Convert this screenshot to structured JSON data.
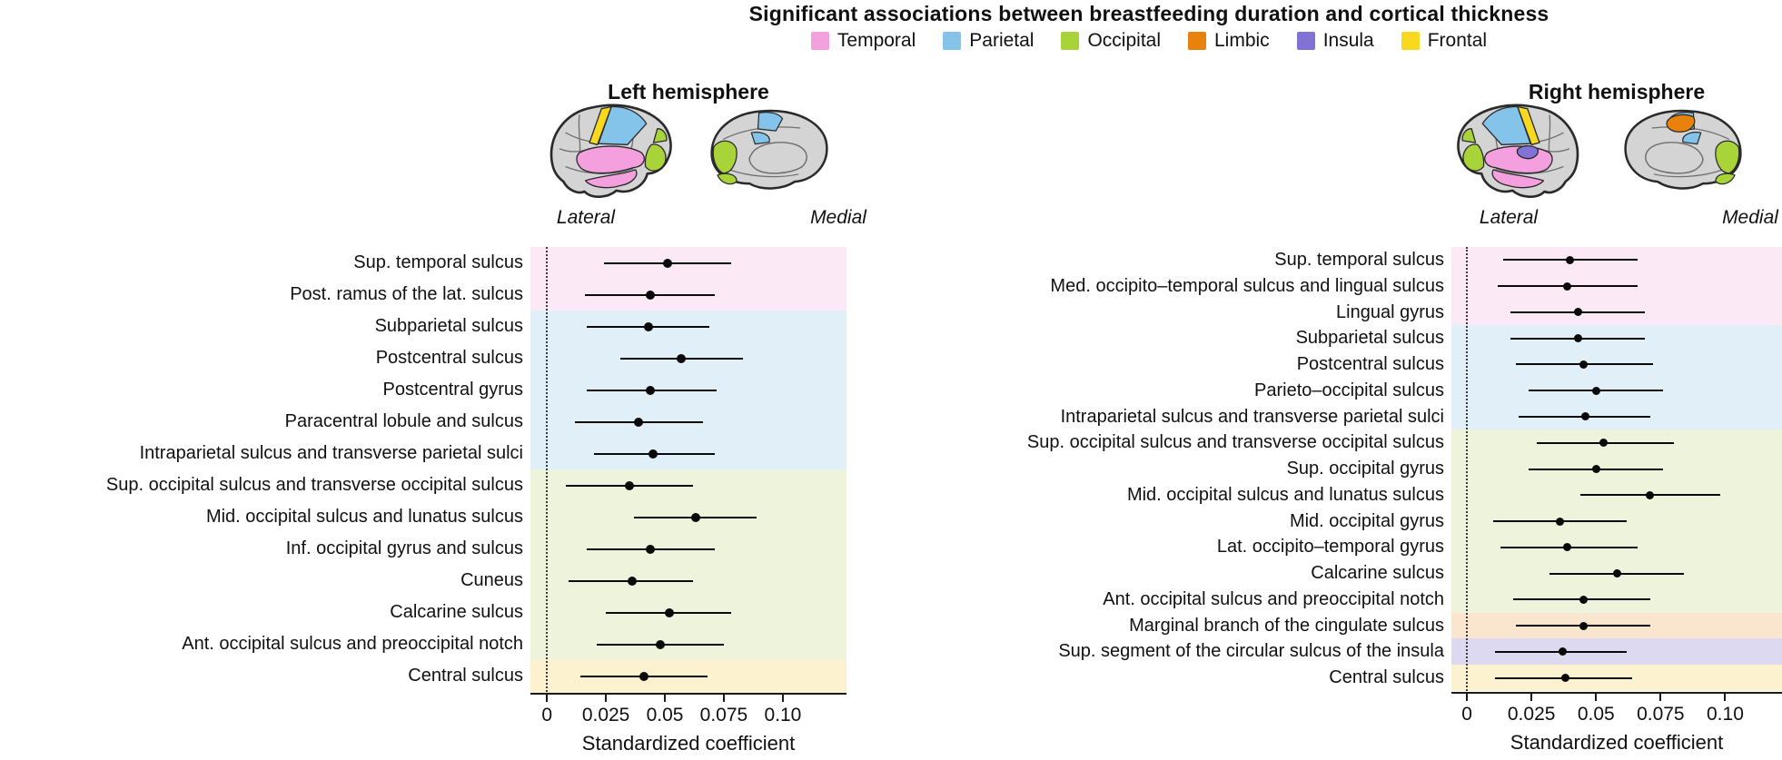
{
  "title": "Significant associations between breastfeeding duration and cortical thickness",
  "legend": [
    {
      "label": "Temporal",
      "color": "#F4A0DF"
    },
    {
      "label": "Parietal",
      "color": "#84C4EB"
    },
    {
      "label": "Occipital",
      "color": "#A8D43A"
    },
    {
      "label": "Limbic",
      "color": "#E8820C"
    },
    {
      "label": "Insula",
      "color": "#8172D6"
    },
    {
      "label": "Frontal",
      "color": "#F8D91F"
    }
  ],
  "band_colors": {
    "Temporal": "#FBE9F6",
    "Parietal": "#E1EFF9",
    "Occipital": "#EDF4DB",
    "Limbic": "#FAE6CE",
    "Insula": "#DCD9F1",
    "Frontal": "#FCF2CF"
  },
  "chart_data": [
    {
      "type": "scatter",
      "subtype": "forest-plot-dot-with-ci",
      "hemisphere": "Left hemisphere",
      "views": [
        "Lateral",
        "Medial"
      ],
      "xlabel": "Standardized coefficient",
      "xlim": [
        -0.007,
        0.127
      ],
      "xticks": [
        0,
        0.025,
        0.05,
        0.075,
        0.1
      ],
      "xtick_labels": [
        "0",
        "0.025",
        "0.05",
        "0.075",
        "0.10"
      ],
      "rows": [
        {
          "label": "Sup. temporal sulcus",
          "lobe": "Temporal",
          "value": 0.051,
          "ci": [
            0.024,
            0.078
          ]
        },
        {
          "label": "Post. ramus of the lat. sulcus",
          "lobe": "Temporal",
          "value": 0.044,
          "ci": [
            0.016,
            0.071
          ]
        },
        {
          "label": "Subparietal sulcus",
          "lobe": "Parietal",
          "value": 0.043,
          "ci": [
            0.017,
            0.069
          ]
        },
        {
          "label": "Postcentral sulcus",
          "lobe": "Parietal",
          "value": 0.057,
          "ci": [
            0.031,
            0.083
          ]
        },
        {
          "label": "Postcentral gyrus",
          "lobe": "Parietal",
          "value": 0.044,
          "ci": [
            0.017,
            0.072
          ]
        },
        {
          "label": "Paracentral lobule and sulcus",
          "lobe": "Parietal",
          "value": 0.039,
          "ci": [
            0.012,
            0.066
          ]
        },
        {
          "label": "Intraparietal sulcus and transverse parietal sulci",
          "lobe": "Parietal",
          "value": 0.045,
          "ci": [
            0.02,
            0.071
          ]
        },
        {
          "label": "Sup. occipital sulcus and transverse occipital sulcus",
          "lobe": "Occipital",
          "value": 0.035,
          "ci": [
            0.008,
            0.062
          ]
        },
        {
          "label": "Mid. occipital sulcus and lunatus sulcus",
          "lobe": "Occipital",
          "value": 0.063,
          "ci": [
            0.037,
            0.089
          ]
        },
        {
          "label": "Inf. occipital gyrus and sulcus",
          "lobe": "Occipital",
          "value": 0.044,
          "ci": [
            0.017,
            0.071
          ]
        },
        {
          "label": "Cuneus",
          "lobe": "Occipital",
          "value": 0.036,
          "ci": [
            0.009,
            0.062
          ]
        },
        {
          "label": "Calcarine sulcus",
          "lobe": "Occipital",
          "value": 0.052,
          "ci": [
            0.025,
            0.078
          ]
        },
        {
          "label": "Ant. occipital sulcus and preoccipital notch",
          "lobe": "Occipital",
          "value": 0.048,
          "ci": [
            0.021,
            0.075
          ]
        },
        {
          "label": "Central sulcus",
          "lobe": "Frontal",
          "value": 0.041,
          "ci": [
            0.014,
            0.068
          ]
        }
      ]
    },
    {
      "type": "scatter",
      "subtype": "forest-plot-dot-with-ci",
      "hemisphere": "Right hemisphere",
      "views": [
        "Lateral",
        "Medial"
      ],
      "xlabel": "Standardized coefficient",
      "xlim": [
        -0.006,
        0.122
      ],
      "xticks": [
        0,
        0.025,
        0.05,
        0.075,
        0.1
      ],
      "xtick_labels": [
        "0",
        "0.025",
        "0.05",
        "0.075",
        "0.10"
      ],
      "rows": [
        {
          "label": "Sup. temporal sulcus",
          "lobe": "Temporal",
          "value": 0.04,
          "ci": [
            0.014,
            0.066
          ]
        },
        {
          "label": "Med. occipito–temporal sulcus and lingual sulcus",
          "lobe": "Temporal",
          "value": 0.039,
          "ci": [
            0.012,
            0.066
          ]
        },
        {
          "label": "Lingual gyrus",
          "lobe": "Temporal",
          "value": 0.043,
          "ci": [
            0.017,
            0.069
          ]
        },
        {
          "label": "Subparietal sulcus",
          "lobe": "Parietal",
          "value": 0.043,
          "ci": [
            0.017,
            0.069
          ]
        },
        {
          "label": "Postcentral sulcus",
          "lobe": "Parietal",
          "value": 0.045,
          "ci": [
            0.019,
            0.072
          ]
        },
        {
          "label": "Parieto–occipital sulcus",
          "lobe": "Parietal",
          "value": 0.05,
          "ci": [
            0.024,
            0.076
          ]
        },
        {
          "label": "Intraparietal sulcus and transverse parietal sulci",
          "lobe": "Parietal",
          "value": 0.046,
          "ci": [
            0.02,
            0.071
          ]
        },
        {
          "label": "Sup. occipital sulcus and transverse occipital sulcus",
          "lobe": "Occipital",
          "value": 0.053,
          "ci": [
            0.027,
            0.08
          ]
        },
        {
          "label": "Sup. occipital gyrus",
          "lobe": "Occipital",
          "value": 0.05,
          "ci": [
            0.024,
            0.076
          ]
        },
        {
          "label": "Mid. occipital sulcus and lunatus sulcus",
          "lobe": "Occipital",
          "value": 0.071,
          "ci": [
            0.044,
            0.098
          ]
        },
        {
          "label": "Mid. occipital gyrus",
          "lobe": "Occipital",
          "value": 0.036,
          "ci": [
            0.01,
            0.062
          ]
        },
        {
          "label": "Lat. occipito–temporal gyrus",
          "lobe": "Occipital",
          "value": 0.039,
          "ci": [
            0.013,
            0.066
          ]
        },
        {
          "label": "Calcarine sulcus",
          "lobe": "Occipital",
          "value": 0.058,
          "ci": [
            0.032,
            0.084
          ]
        },
        {
          "label": "Ant. occipital sulcus and preoccipital notch",
          "lobe": "Occipital",
          "value": 0.045,
          "ci": [
            0.018,
            0.071
          ]
        },
        {
          "label": "Marginal branch of the cingulate sulcus",
          "lobe": "Limbic",
          "value": 0.045,
          "ci": [
            0.019,
            0.071
          ]
        },
        {
          "label": "Sup. segment of the circular sulcus of the insula",
          "lobe": "Insula",
          "value": 0.037,
          "ci": [
            0.011,
            0.062
          ]
        },
        {
          "label": "Central sulcus",
          "lobe": "Frontal",
          "value": 0.038,
          "ci": [
            0.011,
            0.064
          ]
        }
      ]
    }
  ]
}
